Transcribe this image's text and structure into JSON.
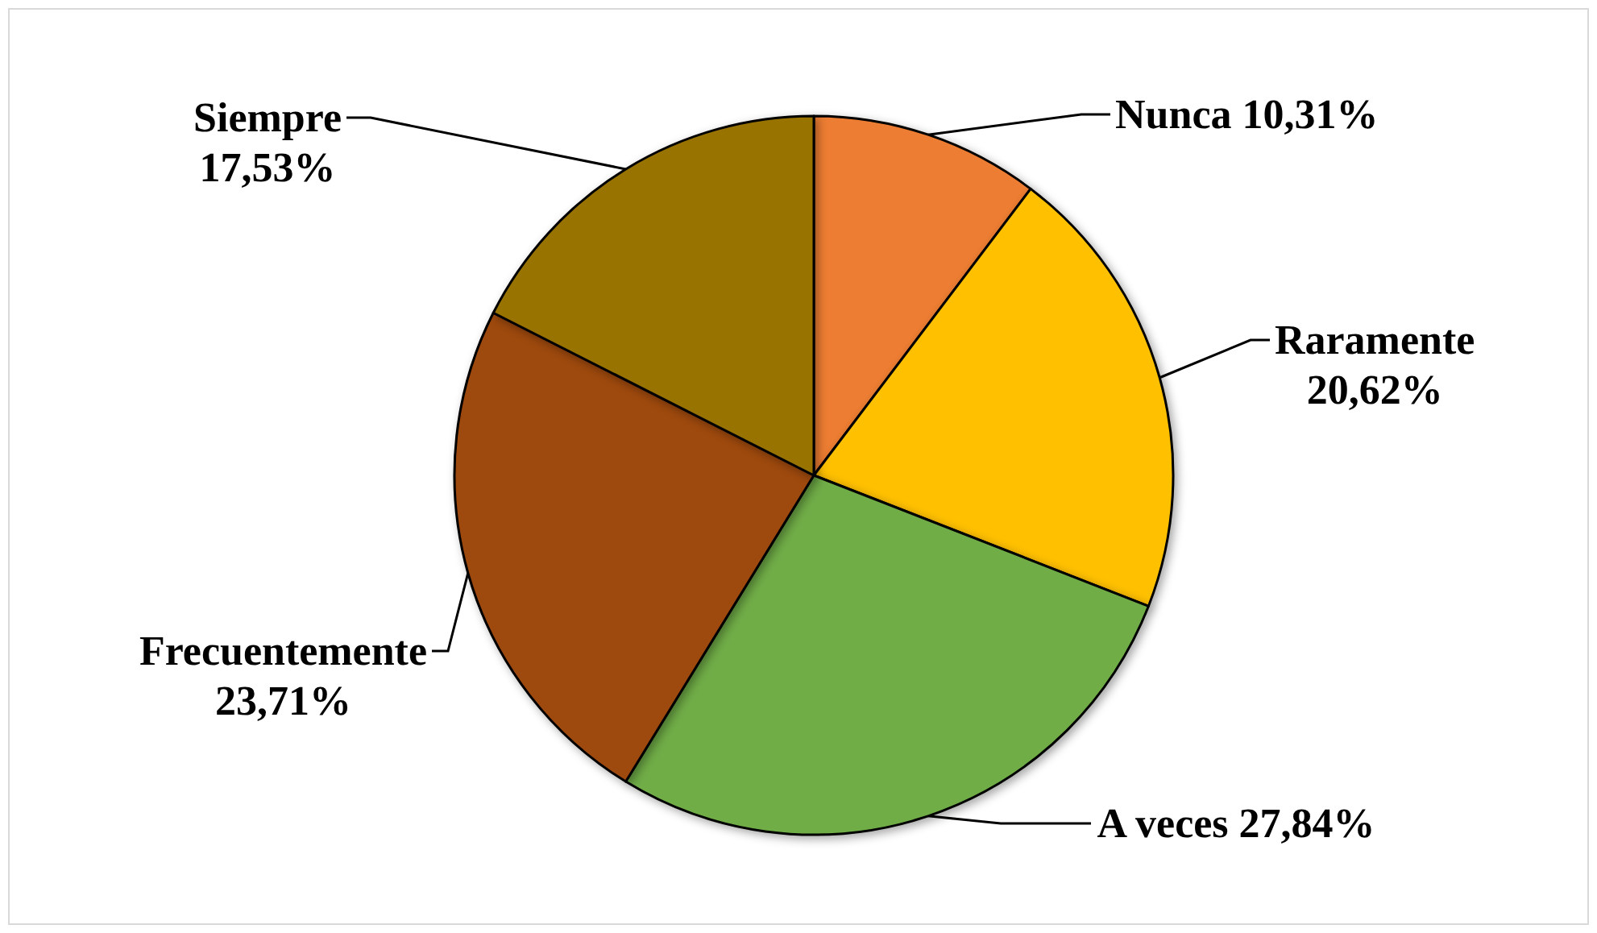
{
  "chart_data": {
    "type": "pie",
    "categories": [
      "Nunca",
      "Raramente",
      "A veces",
      "Frecuentemente",
      "Siempre"
    ],
    "values": [
      10.31,
      20.62,
      27.84,
      23.71,
      17.53
    ],
    "colors": [
      "#ed7d31",
      "#ffc000",
      "#70ad47",
      "#9e480e",
      "#997300"
    ],
    "value_labels": [
      "10,31%",
      "20,62%",
      "27,84%",
      "23,71%",
      "17,53%"
    ]
  }
}
